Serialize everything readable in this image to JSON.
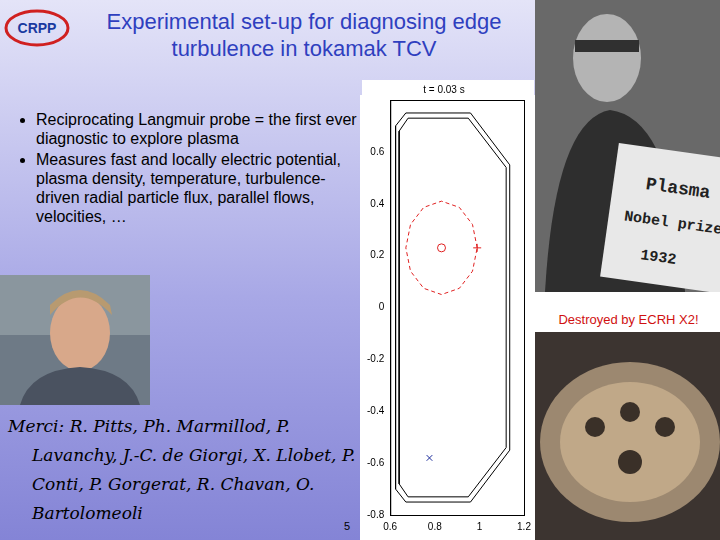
{
  "logo": "CRPP",
  "header": {
    "title": "Experimental set-up for diagnosing edge turbulence in tokamak TCV"
  },
  "bullets": [
    "Reciprocating Langmuir probe = the first ever diagnostic to explore plasma",
    "Measures fast and locally electric potential, plasma density, temperature, turbulence-driven radial particle flux, parallel flows, velocities, …"
  ],
  "photo_sign": [
    "Plasma",
    "Nobel prize",
    "1932"
  ],
  "photo_caption": "Destroyed by ECRH X2!",
  "credits": "Merci: R. Pitts, Ph. Marmillod, P. Lavanchy, J.-C. de Giorgi, X. Llobet, P. Conti, P. Gorgerat, R. Chavan, O. Bartolomeoli",
  "page_number": 5,
  "chart_data": {
    "type": "line",
    "title": "t = 0.03 s",
    "xlim": [
      0.6,
      1.2
    ],
    "xticks": [
      0.6,
      0.8,
      1,
      1.2
    ],
    "ylim": [
      -0.8,
      0.8
    ],
    "yticks": [
      -0.8,
      -0.6,
      -0.4,
      -0.2,
      0,
      0.2,
      0.4,
      0.6
    ],
    "grid": false,
    "series": [
      {
        "color": "#000000",
        "line_style": "solid",
        "marker": "none",
        "x": [
          0.624,
          0.624,
          0.67,
          0.96,
          1.136,
          1.136,
          0.96,
          0.67,
          0.624
        ],
        "values": [
          0.7,
          -0.7,
          -0.75,
          -0.75,
          -0.55,
          0.55,
          0.75,
          0.75,
          0.7
        ]
      },
      {
        "color": "#000000",
        "line_style": "solid",
        "marker": "none",
        "x": [
          0.64,
          0.64,
          0.68,
          0.95,
          1.12,
          1.12,
          0.95,
          0.68,
          0.64
        ],
        "values": [
          0.68,
          -0.68,
          -0.73,
          -0.73,
          -0.54,
          0.54,
          0.73,
          0.73,
          0.68
        ]
      },
      {
        "color": "#e02020",
        "line_style": "dashed",
        "marker": "none",
        "x": [
          0.99,
          0.969,
          0.91,
          0.83,
          0.75,
          0.691,
          0.67,
          0.691,
          0.75,
          0.83,
          0.91,
          0.969,
          0.99
        ],
        "values": [
          0.23,
          0.32,
          0.386,
          0.41,
          0.386,
          0.32,
          0.23,
          0.14,
          0.074,
          0.05,
          0.074,
          0.14,
          0.23
        ]
      },
      {
        "color": "#e02020",
        "line_style": "none",
        "marker": "circle",
        "x": [
          0.83
        ],
        "values": [
          0.23
        ]
      },
      {
        "color": "#e02020",
        "line_style": "none",
        "marker": "plus",
        "x": [
          0.99
        ],
        "values": [
          0.23
        ]
      },
      {
        "color": "#1a2a9a",
        "line_style": "none",
        "marker": "x",
        "x": [
          0.776
        ],
        "values": [
          -0.58
        ]
      }
    ]
  }
}
